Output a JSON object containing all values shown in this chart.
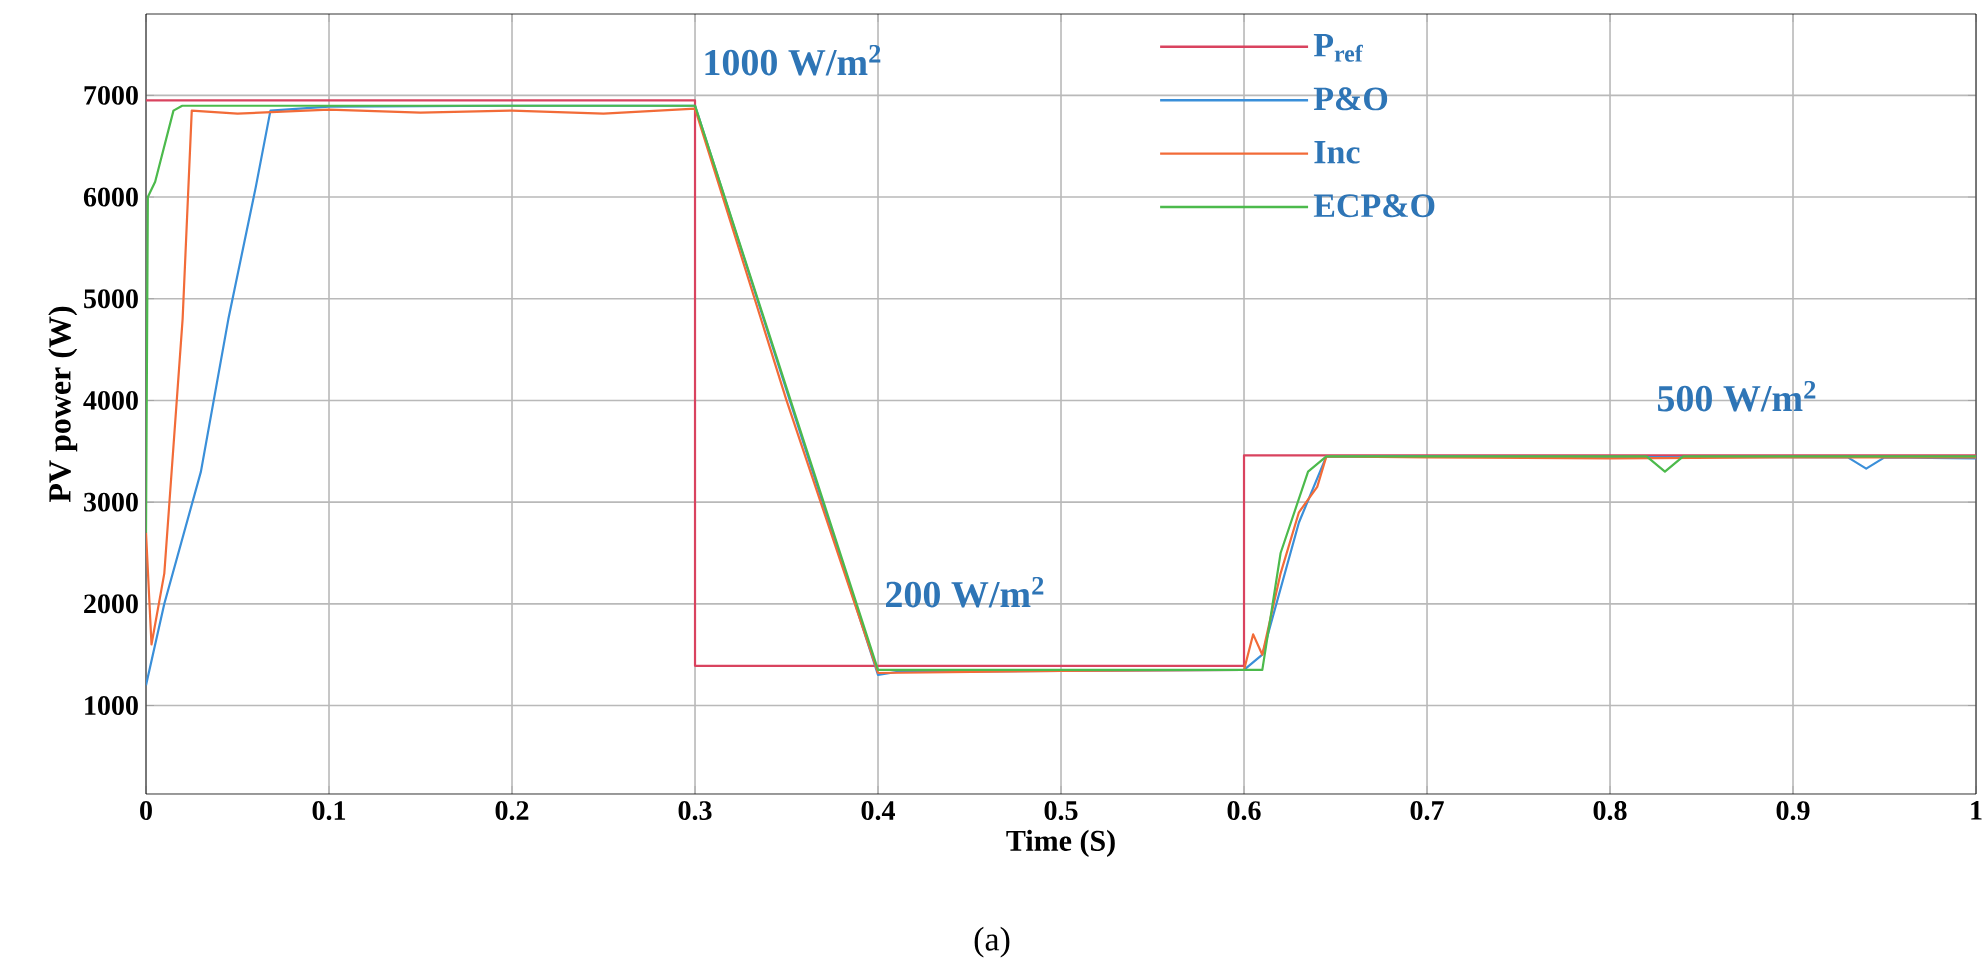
{
  "chart_data": {
    "type": "line",
    "xlabel": "Time  (S)",
    "ylabel": "PV  power  (W)",
    "xlim": [
      0,
      1
    ],
    "ylim": [
      130,
      7800
    ],
    "xticks": [
      0,
      0.1,
      0.2,
      0.3,
      0.4,
      0.5,
      0.6,
      0.7,
      0.8,
      0.9,
      1
    ],
    "yticks": [
      1000,
      2000,
      3000,
      4000,
      5000,
      6000,
      7000
    ],
    "grid": true,
    "legend": "top",
    "line_style": "solid",
    "marker": "none",
    "series": [
      {
        "name": "P$_{ref}$",
        "color": "#d9435f",
        "x": [
          0,
          0.3,
          0.3,
          0.6,
          0.6,
          1
        ],
        "values": [
          6950,
          6950,
          1390,
          1390,
          3460,
          3460
        ]
      },
      {
        "name": "P&O",
        "color": "#3a8fd9",
        "x": [
          0,
          0.01,
          0.03,
          0.045,
          0.06,
          0.068,
          0.1,
          0.2,
          0.3,
          0.4,
          0.41,
          0.6,
          0.61,
          0.63,
          0.645,
          0.93,
          0.94,
          0.95,
          1
        ],
        "values": [
          1200,
          2000,
          3300,
          4800,
          6100,
          6850,
          6890,
          6900,
          6900,
          1300,
          1330,
          1350,
          1500,
          2800,
          3450,
          3440,
          3330,
          3440,
          3430
        ]
      },
      {
        "name": "Inc",
        "color": "#f26b38",
        "x": [
          0,
          0.003,
          0.01,
          0.02,
          0.025,
          0.05,
          0.1,
          0.15,
          0.2,
          0.25,
          0.3,
          0.35,
          0.4,
          0.5,
          0.6,
          0.605,
          0.61,
          0.62,
          0.63,
          0.64,
          0.645,
          0.7,
          0.8,
          0.9,
          1
        ],
        "values": [
          2700,
          1600,
          2300,
          4800,
          6850,
          6820,
          6860,
          6830,
          6850,
          6820,
          6870,
          4000,
          1320,
          1340,
          1350,
          1700,
          1500,
          2300,
          2900,
          3150,
          3450,
          3440,
          3430,
          3440,
          3440
        ]
      },
      {
        "name": "ECP&O",
        "color": "#4cba4c",
        "x": [
          0,
          0.001,
          0.005,
          0.01,
          0.015,
          0.02,
          0.3,
          0.4,
          0.6,
          0.61,
          0.62,
          0.635,
          0.645,
          0.82,
          0.83,
          0.84,
          1
        ],
        "values": [
          2700,
          6000,
          6150,
          6500,
          6850,
          6900,
          6900,
          1350,
          1350,
          1350,
          2500,
          3300,
          3450,
          3450,
          3300,
          3450,
          3450
        ]
      }
    ],
    "annotations": [
      "1000 W/m$^{2}$",
      "200 W/m$^{2}$",
      "500 W/m$^{2}$",
      "(a)"
    ]
  }
}
